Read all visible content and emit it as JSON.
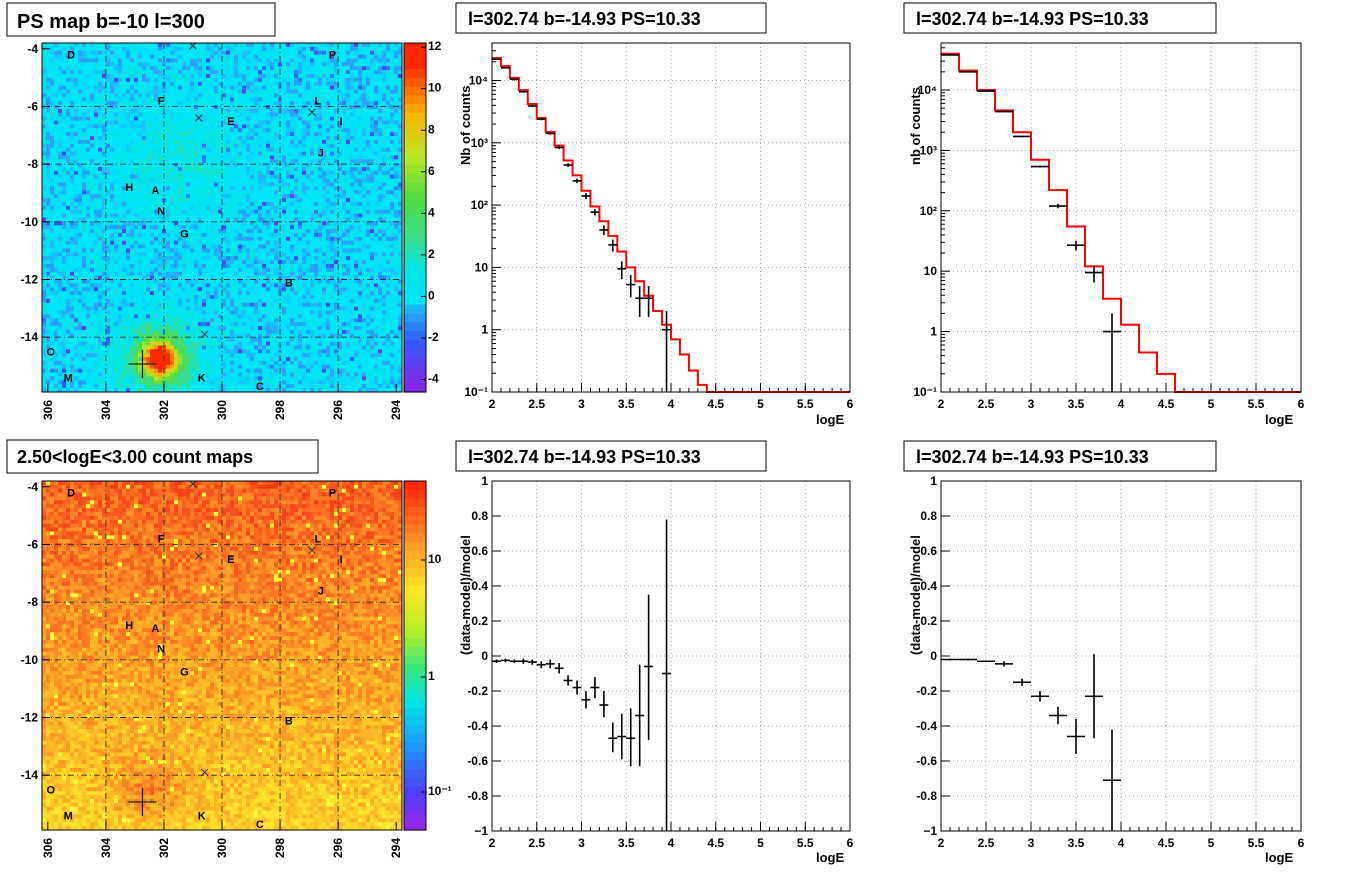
{
  "panels": {
    "map1": {
      "title": "PS map b=-10 l=300",
      "x_ticks": [
        "306",
        "304",
        "302",
        "300",
        "298",
        "296",
        "294"
      ],
      "y_ticks": [
        "-4",
        "-6",
        "-8",
        "-10",
        "-12",
        "-14"
      ],
      "scale_ticks": [
        "12",
        "10",
        "8",
        "6",
        "4",
        "2",
        "0",
        "-2",
        "-4"
      ]
    },
    "map2": {
      "title": "2.50<logE<3.00 count maps",
      "x_ticks": [
        "306",
        "304",
        "302",
        "300",
        "298",
        "296",
        "294"
      ],
      "y_ticks": [
        "-4",
        "-6",
        "-8",
        "-10",
        "-12",
        "-14"
      ],
      "scale_ticks": [
        "10",
        "1",
        "10⁻¹"
      ]
    },
    "spec1": {
      "title": "l=302.74 b=-14.93 PS=10.33",
      "ylabel": "Nb of counts",
      "xlabel": "logE",
      "x_ticks": [
        "2",
        "2.5",
        "3",
        "3.5",
        "4",
        "4.5",
        "5",
        "5.5",
        "6"
      ],
      "y_ticks": [
        "10⁻¹",
        "1",
        "10",
        "10²",
        "10³",
        "10⁴"
      ]
    },
    "spec2": {
      "title": "l=302.74 b=-14.93 PS=10.33",
      "ylabel": "nb of counts",
      "xlabel": "logE",
      "x_ticks": [
        "2",
        "2.5",
        "3",
        "3.5",
        "4",
        "4.5",
        "5",
        "5.5",
        "6"
      ],
      "y_ticks": [
        "10⁻¹",
        "1",
        "10",
        "10²",
        "10³",
        "10⁴"
      ]
    },
    "res1": {
      "title": "l=302.74 b=-14.93 PS=10.33",
      "ylabel": "(data-model)/model",
      "xlabel": "logE",
      "x_ticks": [
        "2",
        "2.5",
        "3",
        "3.5",
        "4",
        "4.5",
        "5",
        "5.5",
        "6"
      ],
      "y_ticks": [
        "1",
        "0.8",
        "0.6",
        "0.4",
        "0.2",
        "0",
        "-0.2",
        "-0.4",
        "-0.6",
        "-0.8",
        "−1"
      ]
    },
    "res2": {
      "title": "l=302.74 b=-14.93 PS=10.33",
      "ylabel": "(data-model)/model",
      "xlabel": "logE",
      "x_ticks": [
        "2",
        "2.5",
        "3",
        "3.5",
        "4",
        "4.5",
        "5",
        "5.5",
        "6"
      ],
      "y_ticks": [
        "1",
        "0.8",
        "0.6",
        "0.4",
        "0.2",
        "0",
        "-0.2",
        "-0.4",
        "-0.6",
        "-0.8",
        "−1"
      ]
    }
  },
  "sources": [
    {
      "label": "D",
      "l": 305.3,
      "b": -4.2
    },
    {
      "label": "P",
      "l": 296.3,
      "b": -4.2
    },
    {
      "label": "F",
      "l": 302.2,
      "b": -5.8
    },
    {
      "label": "L",
      "l": 296.8,
      "b": -5.8
    },
    {
      "label": "E",
      "l": 299.8,
      "b": -6.5
    },
    {
      "label": "I",
      "l": 296.0,
      "b": -6.5
    },
    {
      "label": "J",
      "l": 296.7,
      "b": -7.6
    },
    {
      "label": "H",
      "l": 303.3,
      "b": -8.8
    },
    {
      "label": "A",
      "l": 302.4,
      "b": -8.9
    },
    {
      "label": "N",
      "l": 302.2,
      "b": -9.6
    },
    {
      "label": "G",
      "l": 301.4,
      "b": -10.4
    },
    {
      "label": "B",
      "l": 297.8,
      "b": -12.1
    },
    {
      "label": "O",
      "l": 306.0,
      "b": -14.5
    },
    {
      "label": "M",
      "l": 305.4,
      "b": -15.4
    },
    {
      "label": "K",
      "l": 300.8,
      "b": -15.4
    },
    {
      "label": "C",
      "l": 298.8,
      "b": -15.7
    }
  ],
  "xmarks": [
    {
      "l": 301.0,
      "b": -3.9
    },
    {
      "l": 300.8,
      "b": -6.4
    },
    {
      "l": 296.9,
      "b": -6.2
    },
    {
      "l": 300.6,
      "b": -13.9
    }
  ],
  "target": {
    "l": 302.74,
    "b": -14.93
  },
  "chart_data": [
    {
      "type": "line",
      "name": "spec1",
      "title": "l=302.74 b=-14.93 PS=10.33",
      "xlabel": "logE",
      "ylabel": "Nb of counts",
      "xlim": [
        2,
        6
      ],
      "ylim": [
        0.1,
        40000
      ],
      "log_y": true,
      "grid": true,
      "model_edges": [
        2.0,
        2.1,
        2.2,
        2.3,
        2.4,
        2.5,
        2.6,
        2.7,
        2.8,
        2.9,
        3.0,
        3.1,
        3.2,
        3.3,
        3.4,
        3.5,
        3.6,
        3.7,
        3.8,
        3.9,
        4.0,
        4.1,
        4.2,
        4.3,
        4.4,
        6.0
      ],
      "model_values": [
        23000,
        17000,
        11000,
        7000,
        4200,
        2500,
        1500,
        900,
        520,
        300,
        170,
        95,
        55,
        32,
        18,
        10,
        6,
        3.5,
        2.0,
        1.2,
        0.7,
        0.4,
        0.22,
        0.13,
        0.1
      ],
      "data_points": [
        {
          "x": 2.05,
          "y": 22000,
          "dx": 0.05,
          "lo": 21500,
          "hi": 22500
        },
        {
          "x": 2.15,
          "y": 16000,
          "dx": 0.05,
          "lo": 15500,
          "hi": 16500
        },
        {
          "x": 2.25,
          "y": 10500,
          "dx": 0.05,
          "lo": 10000,
          "hi": 11000
        },
        {
          "x": 2.35,
          "y": 6600,
          "dx": 0.05,
          "lo": 6400,
          "hi": 6800
        },
        {
          "x": 2.45,
          "y": 3900,
          "dx": 0.05,
          "lo": 3750,
          "hi": 4050
        },
        {
          "x": 2.55,
          "y": 2400,
          "dx": 0.05,
          "lo": 2300,
          "hi": 2500
        },
        {
          "x": 2.65,
          "y": 1420,
          "dx": 0.05,
          "lo": 1350,
          "hi": 1490
        },
        {
          "x": 2.75,
          "y": 840,
          "dx": 0.05,
          "lo": 790,
          "hi": 890
        },
        {
          "x": 2.85,
          "y": 440,
          "dx": 0.05,
          "lo": 410,
          "hi": 470
        },
        {
          "x": 2.95,
          "y": 245,
          "dx": 0.05,
          "lo": 225,
          "hi": 265
        },
        {
          "x": 3.05,
          "y": 140,
          "dx": 0.05,
          "lo": 125,
          "hi": 155
        },
        {
          "x": 3.15,
          "y": 77,
          "dx": 0.05,
          "lo": 68,
          "hi": 86
        },
        {
          "x": 3.25,
          "y": 40,
          "dx": 0.05,
          "lo": 33,
          "hi": 47
        },
        {
          "x": 3.35,
          "y": 23,
          "dx": 0.05,
          "lo": 18,
          "hi": 28
        },
        {
          "x": 3.45,
          "y": 9.5,
          "dx": 0.05,
          "lo": 6.5,
          "hi": 12.5
        },
        {
          "x": 3.55,
          "y": 5.3,
          "dx": 0.05,
          "lo": 3.3,
          "hi": 7.5
        },
        {
          "x": 3.65,
          "y": 3.2,
          "dx": 0.05,
          "lo": 1.6,
          "hi": 5.0
        },
        {
          "x": 3.75,
          "y": 3.2,
          "dx": 0.05,
          "lo": 1.6,
          "hi": 5.0
        },
        {
          "x": 3.95,
          "y": 1.0,
          "dx": 0.05,
          "lo": 0.1,
          "hi": 2.0
        }
      ]
    },
    {
      "type": "line",
      "name": "spec2",
      "title": "l=302.74 b=-14.93 PS=10.33",
      "xlabel": "logE",
      "ylabel": "nb of counts",
      "xlim": [
        2,
        6
      ],
      "ylim": [
        0.1,
        60000
      ],
      "log_y": true,
      "grid": true,
      "model_edges": [
        2.0,
        2.2,
        2.4,
        2.6,
        2.8,
        3.0,
        3.2,
        3.4,
        3.6,
        3.8,
        4.0,
        4.2,
        4.4,
        4.6,
        6.0
      ],
      "model_values": [
        40000,
        21000,
        10000,
        4600,
        2000,
        700,
        220,
        55,
        12,
        3.5,
        1.3,
        0.45,
        0.2,
        0.1
      ],
      "data_points": [
        {
          "x": 2.1,
          "y": 38000,
          "dx": 0.1,
          "lo": 37700,
          "hi": 38300
        },
        {
          "x": 2.3,
          "y": 20000,
          "dx": 0.1,
          "lo": 19800,
          "hi": 20200
        },
        {
          "x": 2.5,
          "y": 9600,
          "dx": 0.1,
          "lo": 9450,
          "hi": 9750
        },
        {
          "x": 2.7,
          "y": 4400,
          "dx": 0.1,
          "lo": 4300,
          "hi": 4500
        },
        {
          "x": 2.9,
          "y": 1700,
          "dx": 0.1,
          "lo": 1650,
          "hi": 1750
        },
        {
          "x": 3.1,
          "y": 540,
          "dx": 0.1,
          "lo": 515,
          "hi": 565
        },
        {
          "x": 3.3,
          "y": 120,
          "dx": 0.1,
          "lo": 110,
          "hi": 131
        },
        {
          "x": 3.5,
          "y": 27,
          "dx": 0.1,
          "lo": 22,
          "hi": 32
        },
        {
          "x": 3.7,
          "y": 9.5,
          "dx": 0.1,
          "lo": 6.5,
          "hi": 12.5
        },
        {
          "x": 3.9,
          "y": 1.0,
          "dx": 0.1,
          "lo": 0.1,
          "hi": 2.0
        }
      ]
    },
    {
      "type": "scatter",
      "name": "res1",
      "title": "l=302.74 b=-14.93 PS=10.33",
      "xlabel": "logE",
      "ylabel": "(data-model)/model",
      "xlim": [
        2,
        6
      ],
      "ylim": [
        -1,
        1
      ],
      "grid": true,
      "data_points": [
        {
          "x": 2.05,
          "y": -0.03,
          "dx": 0.05,
          "lo": -0.04,
          "hi": -0.02
        },
        {
          "x": 2.15,
          "y": -0.025,
          "dx": 0.05,
          "lo": -0.035,
          "hi": -0.015
        },
        {
          "x": 2.25,
          "y": -0.03,
          "dx": 0.05,
          "lo": -0.04,
          "hi": -0.02
        },
        {
          "x": 2.35,
          "y": -0.03,
          "dx": 0.05,
          "lo": -0.045,
          "hi": -0.015
        },
        {
          "x": 2.45,
          "y": -0.035,
          "dx": 0.05,
          "lo": -0.05,
          "hi": -0.02
        },
        {
          "x": 2.55,
          "y": -0.05,
          "dx": 0.05,
          "lo": -0.07,
          "hi": -0.03
        },
        {
          "x": 2.65,
          "y": -0.045,
          "dx": 0.05,
          "lo": -0.07,
          "hi": -0.02
        },
        {
          "x": 2.75,
          "y": -0.07,
          "dx": 0.05,
          "lo": -0.1,
          "hi": -0.04
        },
        {
          "x": 2.85,
          "y": -0.14,
          "dx": 0.05,
          "lo": -0.17,
          "hi": -0.11
        },
        {
          "x": 2.95,
          "y": -0.18,
          "dx": 0.05,
          "lo": -0.22,
          "hi": -0.14
        },
        {
          "x": 3.05,
          "y": -0.25,
          "dx": 0.05,
          "lo": -0.3,
          "hi": -0.2
        },
        {
          "x": 3.15,
          "y": -0.18,
          "dx": 0.05,
          "lo": -0.24,
          "hi": -0.12
        },
        {
          "x": 3.25,
          "y": -0.28,
          "dx": 0.05,
          "lo": -0.35,
          "hi": -0.2
        },
        {
          "x": 3.35,
          "y": -0.47,
          "dx": 0.05,
          "lo": -0.55,
          "hi": -0.38
        },
        {
          "x": 3.45,
          "y": -0.46,
          "dx": 0.05,
          "lo": -0.59,
          "hi": -0.33
        },
        {
          "x": 3.55,
          "y": -0.47,
          "dx": 0.05,
          "lo": -0.63,
          "hi": -0.3
        },
        {
          "x": 3.65,
          "y": -0.34,
          "dx": 0.05,
          "lo": -0.63,
          "hi": -0.05
        },
        {
          "x": 3.75,
          "y": -0.06,
          "dx": 0.05,
          "lo": -0.48,
          "hi": 0.35
        },
        {
          "x": 3.95,
          "y": -0.1,
          "dx": 0.05,
          "lo": -1.0,
          "hi": 0.78
        }
      ]
    },
    {
      "type": "scatter",
      "name": "res2",
      "title": "l=302.74 b=-14.93 PS=10.33",
      "xlabel": "logE",
      "ylabel": "(data-model)/model",
      "xlim": [
        2,
        6
      ],
      "ylim": [
        -1,
        1
      ],
      "grid": true,
      "data_points": [
        {
          "x": 2.1,
          "y": -0.02,
          "dx": 0.1,
          "lo": -0.025,
          "hi": -0.015
        },
        {
          "x": 2.3,
          "y": -0.02,
          "dx": 0.1,
          "lo": -0.025,
          "hi": -0.015
        },
        {
          "x": 2.5,
          "y": -0.03,
          "dx": 0.1,
          "lo": -0.035,
          "hi": -0.025
        },
        {
          "x": 2.7,
          "y": -0.045,
          "dx": 0.1,
          "lo": -0.06,
          "hi": -0.03
        },
        {
          "x": 2.9,
          "y": -0.15,
          "dx": 0.1,
          "lo": -0.17,
          "hi": -0.13
        },
        {
          "x": 3.1,
          "y": -0.23,
          "dx": 0.1,
          "lo": -0.26,
          "hi": -0.2
        },
        {
          "x": 3.3,
          "y": -0.34,
          "dx": 0.1,
          "lo": -0.39,
          "hi": -0.29
        },
        {
          "x": 3.5,
          "y": -0.46,
          "dx": 0.1,
          "lo": -0.56,
          "hi": -0.36
        },
        {
          "x": 3.7,
          "y": -0.23,
          "dx": 0.1,
          "lo": -0.47,
          "hi": 0.01
        },
        {
          "x": 3.9,
          "y": -0.71,
          "dx": 0.1,
          "lo": -1.0,
          "hi": -0.42
        }
      ]
    }
  ]
}
